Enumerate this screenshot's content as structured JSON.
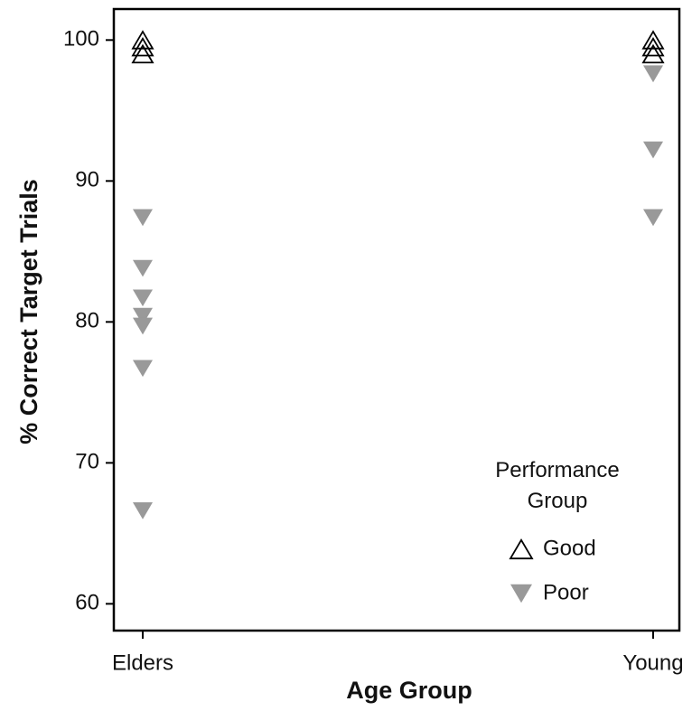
{
  "chart_data": {
    "type": "scatter",
    "x_label": "Age Group",
    "y_label": "% Correct Target Trials",
    "categories": [
      "Elders",
      "Young"
    ],
    "ylim": [
      58.1,
      102.2
    ],
    "yticks": [
      60,
      70,
      80,
      90,
      100
    ],
    "legend_title": "Performance Group",
    "legend_position": "lower right",
    "series": [
      {
        "name": "Good",
        "color": "#000000",
        "marker": "triangle-up-open",
        "x": [
          "Elders",
          "Elders",
          "Elders",
          "Young",
          "Young",
          "Young"
        ],
        "values": [
          100,
          99.5,
          99,
          100,
          99.5,
          99
        ]
      },
      {
        "name": "Poor",
        "color": "#999999",
        "marker": "triangle-down",
        "x": [
          "Elders",
          "Elders",
          "Elders",
          "Elders",
          "Elders",
          "Elders",
          "Elders",
          "Young",
          "Young",
          "Young"
        ],
        "values": [
          87.4,
          83.8,
          81.7,
          80.4,
          79.7,
          76.7,
          66.6,
          97.6,
          92.2,
          87.4
        ]
      }
    ]
  }
}
